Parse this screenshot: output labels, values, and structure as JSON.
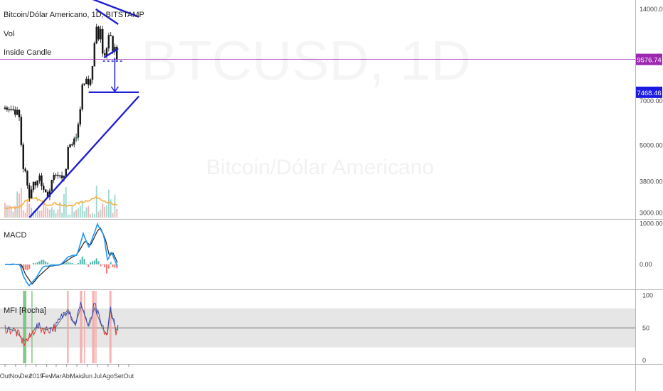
{
  "header": {
    "symbol_line": "Bitcoin/Dólar Americano, 1D, BITSTAMP",
    "indicator_1": "Vol",
    "indicator_2": "Inside Candle"
  },
  "watermark": {
    "big": "BTCUSD, 1D",
    "small": "Bitcoin/Dólar Americano"
  },
  "panes": {
    "macd_title": "MACD",
    "mfi_title": "MFI [Rocha]"
  },
  "price_badges": {
    "current": "9576.74",
    "target": "7468.46"
  },
  "colors": {
    "trendline": "#1f1fd6",
    "up": "#26a69a",
    "down": "#ef5350",
    "ma": "#f5b041",
    "badge_current": "#9c27b0",
    "badge_target": "#1a1ae0",
    "macd_line": "#2196f3",
    "signal_line": "#222222",
    "mfi_red": "#e53935",
    "mfi_blue": "#3949ab",
    "band": "#dcdcdc",
    "high_zone": "#f4a3a3",
    "low_zone": "#6fbf73"
  },
  "chart_data": [
    {
      "type": "candlestick",
      "title": "Bitcoin/Dólar Americano, 1D, BITSTAMP",
      "yscale": "log",
      "ylim": [
        2900,
        15000
      ],
      "y_ticks": [
        "14000.00",
        "9576.74",
        "7468.46",
        "7000.00",
        "5000.00",
        "3800.00",
        "3000.00"
      ],
      "x_ticks": [
        "Out",
        "Nov",
        "Dez",
        "2019",
        "Fev",
        "Mar",
        "Abr",
        "Maio",
        "Jun",
        "Jul",
        "Ago",
        "Set",
        "Out"
      ],
      "x_tick_dates": [
        "2018-10-01",
        "2018-11-01",
        "2018-12-01",
        "2019-01-01",
        "2019-02-01",
        "2019-03-01",
        "2019-04-01",
        "2019-05-01",
        "2019-06-01",
        "2019-07-01",
        "2019-08-01",
        "2019-09-01",
        "2019-10-01"
      ],
      "closes": [
        {
          "date": "2018-10-01",
          "close": 6600
        },
        {
          "date": "2018-10-15",
          "close": 6500
        },
        {
          "date": "2018-11-01",
          "close": 6350
        },
        {
          "date": "2018-11-10",
          "close": 6450
        },
        {
          "date": "2018-11-15",
          "close": 5600
        },
        {
          "date": "2018-11-20",
          "close": 4600
        },
        {
          "date": "2018-11-25",
          "close": 4000
        },
        {
          "date": "2018-12-01",
          "close": 4100
        },
        {
          "date": "2018-12-07",
          "close": 3600
        },
        {
          "date": "2018-12-15",
          "close": 3250
        },
        {
          "date": "2018-12-20",
          "close": 3850
        },
        {
          "date": "2018-12-31",
          "close": 3750
        },
        {
          "date": "2019-01-09",
          "close": 4000
        },
        {
          "date": "2019-01-20",
          "close": 3600
        },
        {
          "date": "2019-02-07",
          "close": 3400
        },
        {
          "date": "2019-02-20",
          "close": 3950
        },
        {
          "date": "2019-03-10",
          "close": 3900
        },
        {
          "date": "2019-03-20",
          "close": 4000
        },
        {
          "date": "2019-03-31",
          "close": 4100
        },
        {
          "date": "2019-04-03",
          "close": 4900
        },
        {
          "date": "2019-04-15",
          "close": 5100
        },
        {
          "date": "2019-04-30",
          "close": 5300
        },
        {
          "date": "2019-05-10",
          "close": 6300
        },
        {
          "date": "2019-05-14",
          "close": 7800
        },
        {
          "date": "2019-05-20",
          "close": 8000
        },
        {
          "date": "2019-06-01",
          "close": 8500
        },
        {
          "date": "2019-06-07",
          "close": 7700
        },
        {
          "date": "2019-06-15",
          "close": 8800
        },
        {
          "date": "2019-06-20",
          "close": 9600
        },
        {
          "date": "2019-06-26",
          "close": 12900
        },
        {
          "date": "2019-07-01",
          "close": 11000
        },
        {
          "date": "2019-07-05",
          "close": 11000
        },
        {
          "date": "2019-07-10",
          "close": 12200
        },
        {
          "date": "2019-07-17",
          "close": 9700
        },
        {
          "date": "2019-07-25",
          "close": 9800
        },
        {
          "date": "2019-08-06",
          "close": 11800
        },
        {
          "date": "2019-08-15",
          "close": 10300
        },
        {
          "date": "2019-08-20",
          "close": 10600
        },
        {
          "date": "2019-08-28",
          "close": 9600
        }
      ],
      "moving_average": [
        {
          "date": "2018-10-01",
          "value": 3100
        },
        {
          "date": "2018-11-15",
          "value": 3150
        },
        {
          "date": "2018-12-01",
          "value": 3300
        },
        {
          "date": "2019-01-01",
          "value": 3350
        },
        {
          "date": "2019-02-01",
          "value": 3200
        },
        {
          "date": "2019-03-01",
          "value": 3230
        },
        {
          "date": "2019-04-01",
          "value": 3150
        },
        {
          "date": "2019-05-01",
          "value": 3220
        },
        {
          "date": "2019-06-01",
          "value": 3300
        },
        {
          "date": "2019-07-01",
          "value": 3380
        },
        {
          "date": "2019-08-01",
          "value": 3250
        },
        {
          "date": "2019-08-31",
          "value": 3150
        }
      ],
      "trendlines": [
        {
          "from": {
            "date": "2018-12-12",
            "price": 2900
          },
          "to": {
            "date": "2019-10-31",
            "price": 7250
          }
        },
        {
          "from": {
            "date": "2019-02-15",
            "price": 17000
          },
          "to": {
            "date": "2019-10-31",
            "price": 13200
          }
        },
        {
          "from": {
            "date": "2019-06-26",
            "price": 14000
          },
          "to": {
            "date": "2019-08-31",
            "price": 12500
          }
        },
        {
          "from": {
            "date": "2019-07-20",
            "price": 9700
          },
          "to": {
            "date": "2019-08-31",
            "price": 10400
          }
        },
        {
          "from": {
            "date": "2019-06-05",
            "price": 7468.46
          },
          "to": {
            "date": "2019-10-31",
            "price": 7468.46
          }
        }
      ],
      "dotted_line": {
        "from": "2019-07-17",
        "to": "2019-09-13",
        "price": 9450
      },
      "target_arrow": {
        "date": "2019-08-21",
        "from": 9700,
        "to": 7468.46
      }
    },
    {
      "type": "line",
      "title": "MACD",
      "y_ticks": [
        "1000.00",
        "0.00"
      ],
      "series": [
        {
          "values": [
            {
              "date": "2018-10-01",
              "value": 0
            },
            {
              "date": "2018-11-14",
              "value": 0
            },
            {
              "date": "2018-11-25",
              "value": -300
            },
            {
              "date": "2018-12-10",
              "value": -530
            },
            {
              "date": "2018-12-30",
              "value": -350
            },
            {
              "date": "2019-01-20",
              "value": -60
            },
            {
              "date": "2019-02-15",
              "value": -20
            },
            {
              "date": "2019-03-15",
              "value": 0
            },
            {
              "date": "2019-04-05",
              "value": 180
            },
            {
              "date": "2019-04-20",
              "value": 220
            },
            {
              "date": "2019-05-01",
              "value": 220
            },
            {
              "date": "2019-05-20",
              "value": 760
            },
            {
              "date": "2019-06-05",
              "value": 420
            },
            {
              "date": "2019-06-25",
              "value": 840
            },
            {
              "date": "2019-06-30",
              "value": 1000
            },
            {
              "date": "2019-07-20",
              "value": 700
            },
            {
              "date": "2019-07-31",
              "value": 80
            },
            {
              "date": "2019-08-10",
              "value": 330
            },
            {
              "date": "2019-08-20",
              "value": 120
            },
            {
              "date": "2019-08-31",
              "value": -100
            }
          ]
        },
        {
          "values": [
            {
              "date": "2018-10-01",
              "value": 0
            },
            {
              "date": "2018-11-18",
              "value": 0
            },
            {
              "date": "2018-12-01",
              "value": -250
            },
            {
              "date": "2018-12-20",
              "value": -480
            },
            {
              "date": "2019-01-10",
              "value": -280
            },
            {
              "date": "2019-02-10",
              "value": -40
            },
            {
              "date": "2019-03-15",
              "value": -5
            },
            {
              "date": "2019-04-10",
              "value": 140
            },
            {
              "date": "2019-05-01",
              "value": 240
            },
            {
              "date": "2019-05-25",
              "value": 570
            },
            {
              "date": "2019-06-10",
              "value": 470
            },
            {
              "date": "2019-07-01",
              "value": 820
            },
            {
              "date": "2019-07-10",
              "value": 900
            },
            {
              "date": "2019-07-25",
              "value": 600
            },
            {
              "date": "2019-08-05",
              "value": 200
            },
            {
              "date": "2019-08-15",
              "value": 300
            },
            {
              "date": "2019-08-31",
              "value": 0
            }
          ]
        }
      ]
    },
    {
      "type": "line",
      "title": "MFI [Rocha]",
      "y_ticks": [
        "100",
        "50",
        "0"
      ],
      "ylim": [
        0,
        100
      ],
      "band": [
        20,
        80
      ],
      "midline": 50,
      "low_zones": [
        {
          "from": "2018-11-23",
          "to": "2018-11-25"
        },
        {
          "from": "2018-11-26",
          "to": "2018-12-03"
        },
        {
          "from": "2018-12-18",
          "to": "2018-12-20"
        }
      ],
      "high_zones": [
        {
          "from": "2019-04-02",
          "to": "2019-04-07"
        },
        {
          "from": "2019-05-10",
          "to": "2019-05-17"
        },
        {
          "from": "2019-05-22",
          "to": "2019-05-24"
        },
        {
          "from": "2019-06-15",
          "to": "2019-06-23"
        },
        {
          "from": "2019-06-25",
          "to": "2019-06-27"
        },
        {
          "from": "2019-08-05",
          "to": "2019-08-07"
        },
        {
          "from": "2019-08-08",
          "to": "2019-08-11"
        }
      ]
    }
  ]
}
